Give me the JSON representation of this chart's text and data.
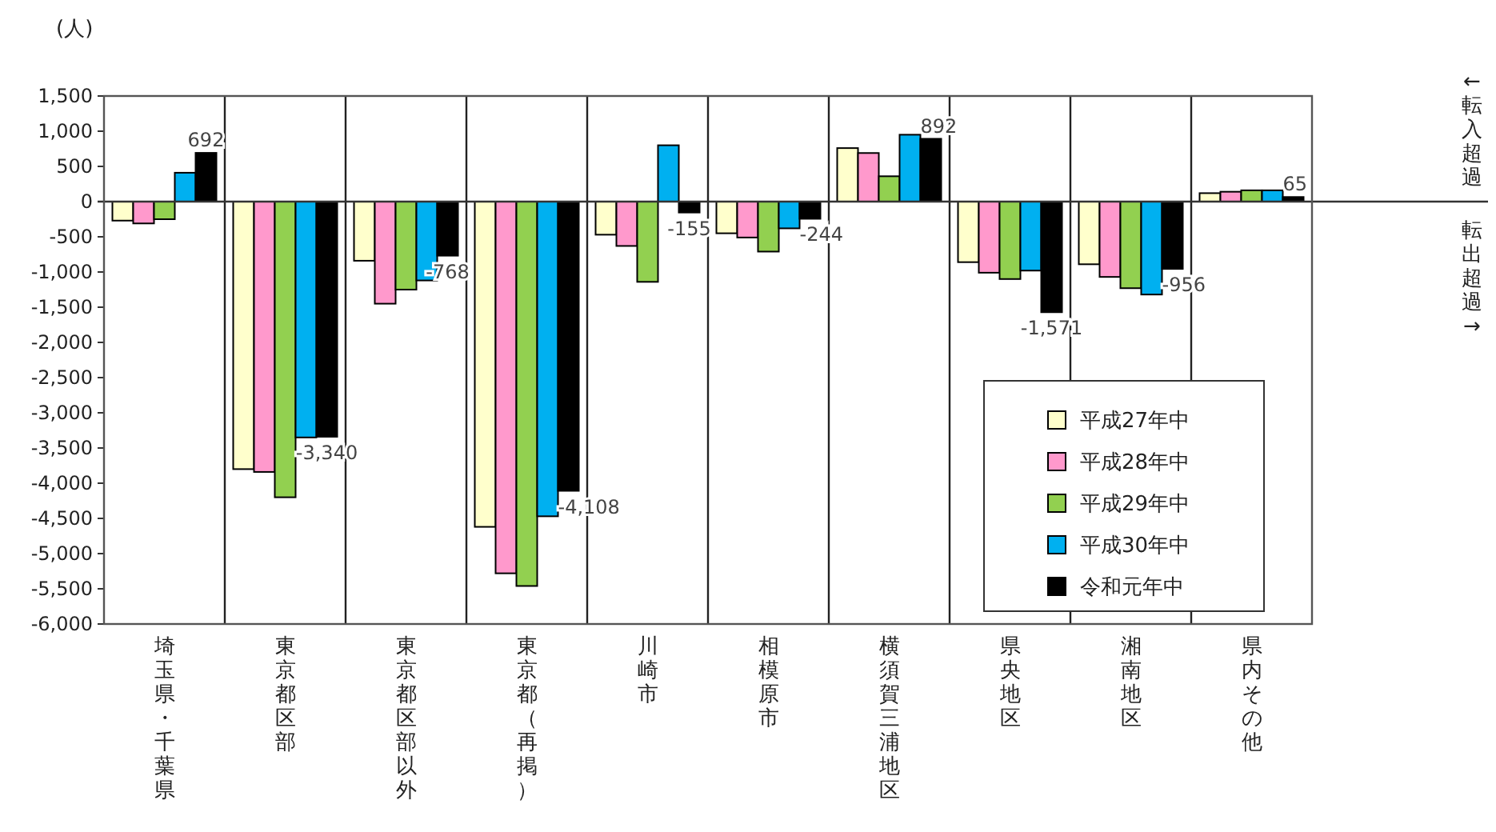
{
  "chart_data": {
    "type": "bar",
    "ylabel": "(人)",
    "categories": [
      "埼玉県・千葉県",
      "東京都区部",
      "東京都区部以外",
      "東京都（再掲）",
      "川崎市",
      "相模原市",
      "横須賀三浦地区",
      "県央地区",
      "湘南地区",
      "県内その他"
    ],
    "series": [
      {
        "name": "平成27年中",
        "color": "#ffffcc",
        "values": [
          -270,
          -3800,
          -840,
          -4620,
          -470,
          -450,
          760,
          -860,
          -890,
          120
        ]
      },
      {
        "name": "平成28年中",
        "color": "#ff99cc",
        "values": [
          -310,
          -3840,
          -1450,
          -5280,
          -630,
          -510,
          690,
          -1010,
          -1070,
          140
        ]
      },
      {
        "name": "平成29年中",
        "color": "#92d050",
        "values": [
          -250,
          -4200,
          -1250,
          -5460,
          -1140,
          -710,
          360,
          -1100,
          -1230,
          160
        ]
      },
      {
        "name": "平成30年中",
        "color": "#00b0f0",
        "values": [
          410,
          -3350,
          -1120,
          -4470,
          800,
          -380,
          950,
          -980,
          -1320,
          160
        ]
      },
      {
        "name": "令和元年中",
        "color": "#000000",
        "values": [
          692,
          -3340,
          -768,
          -4108,
          -155,
          -244,
          892,
          -1571,
          -956,
          65
        ],
        "value_labels": [
          "692",
          "-3,340",
          "-768",
          "-4,108",
          "-155",
          "-244",
          "892",
          "-1,571",
          "-956",
          "65"
        ]
      }
    ],
    "ylim": [
      -6000,
      1500
    ],
    "yticks": [
      {
        "value": 1500,
        "label": "1,500"
      },
      {
        "value": 1000,
        "label": "1,000"
      },
      {
        "value": 500,
        "label": "500"
      },
      {
        "value": 0,
        "label": "0"
      },
      {
        "value": -500,
        "label": "-500"
      },
      {
        "value": -1000,
        "label": "-1,000"
      },
      {
        "value": -1500,
        "label": "-1,500"
      },
      {
        "value": -2000,
        "label": "-2,000"
      },
      {
        "value": -2500,
        "label": "-2,500"
      },
      {
        "value": -3000,
        "label": "-3,000"
      },
      {
        "value": -3500,
        "label": "-3,500"
      },
      {
        "value": -4000,
        "label": "-4,000"
      },
      {
        "value": -4500,
        "label": "-4,500"
      },
      {
        "value": -5000,
        "label": "-5,000"
      },
      {
        "value": -5500,
        "label": "-5,500"
      },
      {
        "value": -6000,
        "label": "-6,000"
      }
    ],
    "legend": "bottom right",
    "grid": false,
    "annotations": [
      "←転入超過",
      "転出超過→"
    ]
  }
}
